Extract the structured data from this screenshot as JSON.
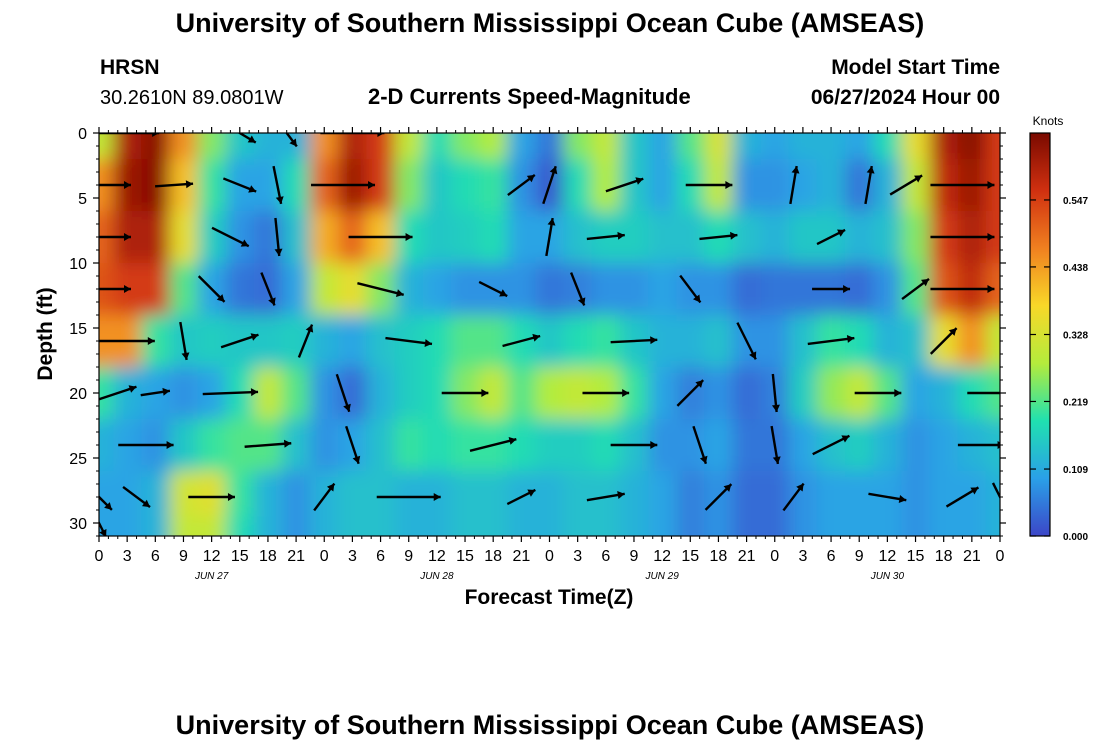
{
  "page": {
    "title": "University of Southern Mississippi Ocean Cube (AMSEAS)",
    "footer_title": "University of Southern Mississippi Ocean Cube (AMSEAS)",
    "station": "HRSN",
    "location": "30.2610N  89.0801W",
    "chart_heading": "2-D Currents Speed-Magnitude",
    "model_start_label": "Model Start Time",
    "model_start_value": "06/27/2024 Hour 00"
  },
  "chart_data": {
    "type": "heatmap",
    "title": "2-D Currents Speed-Magnitude",
    "xlabel": "Forecast Time(Z)",
    "ylabel": "Depth (ft)",
    "ylim": [
      31,
      0
    ],
    "xlim_hours": [
      0,
      96
    ],
    "x_tick_labels": [
      "0",
      "3",
      "6",
      "9",
      "12",
      "15",
      "18",
      "21",
      "0",
      "3",
      "6",
      "9",
      "12",
      "15",
      "18",
      "21",
      "0",
      "3",
      "6",
      "9",
      "12",
      "15",
      "18",
      "21",
      "0",
      "3",
      "6",
      "9",
      "12",
      "15",
      "18",
      "21",
      "0"
    ],
    "date_labels": [
      {
        "label": "JUN 27",
        "hour": 12
      },
      {
        "label": "JUN 28",
        "hour": 36
      },
      {
        "label": "JUN 29",
        "hour": 60
      },
      {
        "label": "JUN 30",
        "hour": 84
      }
    ],
    "y_ticks": [
      0,
      5,
      10,
      15,
      20,
      25,
      30
    ],
    "colorbar": {
      "unit": "Knots",
      "range": [
        0,
        0.656
      ],
      "tick_values": [
        0.0,
        0.109,
        0.219,
        0.328,
        0.438,
        0.547
      ],
      "tick_labels": [
        "0.000",
        "0.109",
        "0.219",
        "0.328",
        "0.438",
        "0.547"
      ],
      "colors": [
        "#3c46c8",
        "#2aa0e8",
        "#20e0b0",
        "#b4ec3c",
        "#f8d828",
        "#f08020",
        "#d03010",
        "#7a0a00"
      ]
    },
    "arrow_depths": [
      0,
      4,
      8,
      12,
      16,
      20,
      24,
      28,
      30
    ],
    "speed_grid": {
      "depths": [
        0,
        4,
        8,
        12,
        16,
        20,
        24,
        28,
        31
      ],
      "hours": [
        0,
        3,
        6,
        9,
        12,
        15,
        18,
        21,
        24,
        27,
        30,
        33,
        36,
        39,
        42,
        45,
        48,
        51,
        54,
        57,
        60,
        63,
        66,
        69,
        72,
        75,
        78,
        81,
        84,
        87,
        90,
        93,
        96
      ],
      "values": [
        [
          0.3,
          0.6,
          0.64,
          0.45,
          0.25,
          0.15,
          0.12,
          0.12,
          0.45,
          0.6,
          0.55,
          0.3,
          0.18,
          0.25,
          0.28,
          0.1,
          0.05,
          0.25,
          0.3,
          0.15,
          0.1,
          0.22,
          0.33,
          0.12,
          0.1,
          0.12,
          0.12,
          0.1,
          0.18,
          0.35,
          0.6,
          0.64,
          0.55
        ],
        [
          0.45,
          0.62,
          0.64,
          0.4,
          0.2,
          0.1,
          0.1,
          0.18,
          0.5,
          0.62,
          0.55,
          0.25,
          0.15,
          0.18,
          0.2,
          0.08,
          0.02,
          0.18,
          0.28,
          0.15,
          0.1,
          0.18,
          0.3,
          0.08,
          0.08,
          0.1,
          0.12,
          0.05,
          0.12,
          0.3,
          0.58,
          0.62,
          0.55
        ],
        [
          0.5,
          0.6,
          0.6,
          0.35,
          0.16,
          0.08,
          0.05,
          0.14,
          0.42,
          0.5,
          0.4,
          0.18,
          0.15,
          0.16,
          0.18,
          0.1,
          0.1,
          0.14,
          0.16,
          0.16,
          0.14,
          0.14,
          0.18,
          0.14,
          0.12,
          0.15,
          0.15,
          0.12,
          0.14,
          0.25,
          0.55,
          0.6,
          0.55
        ],
        [
          0.52,
          0.55,
          0.55,
          0.22,
          0.1,
          0.05,
          0.04,
          0.1,
          0.3,
          0.35,
          0.25,
          0.12,
          0.1,
          0.08,
          0.08,
          0.08,
          0.05,
          0.06,
          0.08,
          0.08,
          0.1,
          0.08,
          0.08,
          0.04,
          0.05,
          0.05,
          0.05,
          0.04,
          0.08,
          0.22,
          0.52,
          0.58,
          0.5
        ],
        [
          0.45,
          0.45,
          0.2,
          0.15,
          0.16,
          0.15,
          0.15,
          0.16,
          0.12,
          0.1,
          0.14,
          0.16,
          0.18,
          0.22,
          0.22,
          0.18,
          0.15,
          0.18,
          0.2,
          0.15,
          0.12,
          0.12,
          0.14,
          0.08,
          0.08,
          0.14,
          0.2,
          0.18,
          0.12,
          0.14,
          0.35,
          0.45,
          0.3
        ],
        [
          0.2,
          0.12,
          0.1,
          0.08,
          0.1,
          0.18,
          0.3,
          0.22,
          0.08,
          0.04,
          0.12,
          0.16,
          0.18,
          0.25,
          0.3,
          0.22,
          0.28,
          0.3,
          0.28,
          0.2,
          0.1,
          0.06,
          0.08,
          0.04,
          0.06,
          0.16,
          0.26,
          0.3,
          0.22,
          0.1,
          0.12,
          0.18,
          0.22
        ],
        [
          0.12,
          0.1,
          0.08,
          0.15,
          0.2,
          0.22,
          0.22,
          0.14,
          0.08,
          0.1,
          0.14,
          0.2,
          0.18,
          0.2,
          0.2,
          0.18,
          0.16,
          0.16,
          0.18,
          0.14,
          0.08,
          0.08,
          0.1,
          0.05,
          0.05,
          0.1,
          0.14,
          0.16,
          0.12,
          0.08,
          0.1,
          0.12,
          0.14
        ],
        [
          0.1,
          0.1,
          0.12,
          0.32,
          0.34,
          0.2,
          0.12,
          0.08,
          0.12,
          0.14,
          0.14,
          0.12,
          0.12,
          0.14,
          0.14,
          0.12,
          0.12,
          0.14,
          0.14,
          0.12,
          0.1,
          0.06,
          0.08,
          0.04,
          0.04,
          0.08,
          0.1,
          0.1,
          0.1,
          0.08,
          0.1,
          0.1,
          0.12
        ],
        [
          0.1,
          0.1,
          0.12,
          0.3,
          0.3,
          0.18,
          0.12,
          0.08,
          0.12,
          0.14,
          0.14,
          0.12,
          0.12,
          0.14,
          0.14,
          0.12,
          0.12,
          0.14,
          0.14,
          0.12,
          0.1,
          0.06,
          0.08,
          0.04,
          0.04,
          0.08,
          0.1,
          0.1,
          0.1,
          0.08,
          0.1,
          0.1,
          0.12
        ]
      ]
    },
    "current_vectors": [
      {
        "hour": 3,
        "depth": 0,
        "u": 0.6,
        "v": 0.0
      },
      {
        "hour": 15,
        "depth": 0,
        "u": 0.25,
        "v": -0.15
      },
      {
        "hour": 20,
        "depth": 0,
        "u": 0.15,
        "v": -0.2
      },
      {
        "hour": 27,
        "depth": 0,
        "u": 0.6,
        "v": 0.0
      },
      {
        "hour": 0,
        "depth": 4,
        "u": 0.6,
        "v": 0.0
      },
      {
        "hour": 8,
        "depth": 4,
        "u": 0.3,
        "v": 0.02
      },
      {
        "hour": 15,
        "depth": 4,
        "u": 0.25,
        "v": -0.1
      },
      {
        "hour": 19,
        "depth": 4,
        "u": 0.06,
        "v": -0.3
      },
      {
        "hour": 26,
        "depth": 4,
        "u": 0.6,
        "v": 0.0
      },
      {
        "hour": 45,
        "depth": 4,
        "u": 0.2,
        "v": 0.15
      },
      {
        "hour": 48,
        "depth": 4,
        "u": 0.1,
        "v": 0.3
      },
      {
        "hour": 56,
        "depth": 4,
        "u": 0.3,
        "v": 0.1
      },
      {
        "hour": 65,
        "depth": 4,
        "u": 0.4,
        "v": 0.0
      },
      {
        "hour": 74,
        "depth": 4,
        "u": 0.05,
        "v": 0.3
      },
      {
        "hour": 82,
        "depth": 4,
        "u": 0.05,
        "v": 0.3
      },
      {
        "hour": 86,
        "depth": 4,
        "u": 0.25,
        "v": 0.15
      },
      {
        "hour": 92,
        "depth": 4,
        "u": 0.6,
        "v": 0.0
      },
      {
        "hour": 0,
        "depth": 8,
        "u": 0.6,
        "v": 0.0
      },
      {
        "hour": 14,
        "depth": 8,
        "u": 0.3,
        "v": -0.15
      },
      {
        "hour": 19,
        "depth": 8,
        "u": 0.03,
        "v": -0.3
      },
      {
        "hour": 30,
        "depth": 8,
        "u": 0.6,
        "v": 0.0
      },
      {
        "hour": 48,
        "depth": 8,
        "u": 0.05,
        "v": 0.3
      },
      {
        "hour": 54,
        "depth": 8,
        "u": 0.3,
        "v": 0.03
      },
      {
        "hour": 66,
        "depth": 8,
        "u": 0.3,
        "v": 0.03
      },
      {
        "hour": 78,
        "depth": 8,
        "u": 0.2,
        "v": 0.1
      },
      {
        "hour": 92,
        "depth": 8,
        "u": 0.6,
        "v": 0.0
      },
      {
        "hour": 0,
        "depth": 12,
        "u": 0.6,
        "v": 0.0
      },
      {
        "hour": 12,
        "depth": 12,
        "u": 0.2,
        "v": -0.2
      },
      {
        "hour": 18,
        "depth": 12,
        "u": 0.1,
        "v": -0.25
      },
      {
        "hour": 30,
        "depth": 12,
        "u": 0.4,
        "v": -0.1
      },
      {
        "hour": 42,
        "depth": 12,
        "u": 0.2,
        "v": -0.1
      },
      {
        "hour": 51,
        "depth": 12,
        "u": 0.1,
        "v": -0.25
      },
      {
        "hour": 63,
        "depth": 12,
        "u": 0.15,
        "v": -0.2
      },
      {
        "hour": 78,
        "depth": 12,
        "u": 0.3,
        "v": 0.0
      },
      {
        "hour": 87,
        "depth": 12,
        "u": 0.2,
        "v": 0.15
      },
      {
        "hour": 92,
        "depth": 12,
        "u": 0.6,
        "v": 0.0
      },
      {
        "hour": 3,
        "depth": 16,
        "u": 0.5,
        "v": 0.0
      },
      {
        "hour": 9,
        "depth": 16,
        "u": 0.05,
        "v": -0.3
      },
      {
        "hour": 15,
        "depth": 16,
        "u": 0.3,
        "v": 0.1
      },
      {
        "hour": 22,
        "depth": 16,
        "u": 0.1,
        "v": 0.25
      },
      {
        "hour": 33,
        "depth": 16,
        "u": 0.4,
        "v": -0.05
      },
      {
        "hour": 45,
        "depth": 16,
        "u": 0.3,
        "v": 0.08
      },
      {
        "hour": 57,
        "depth": 16,
        "u": 0.4,
        "v": 0.02
      },
      {
        "hour": 69,
        "depth": 16,
        "u": 0.15,
        "v": -0.3
      },
      {
        "hour": 78,
        "depth": 16,
        "u": 0.4,
        "v": 0.05
      },
      {
        "hour": 90,
        "depth": 16,
        "u": 0.2,
        "v": 0.2
      },
      {
        "hour": 2,
        "depth": 20,
        "u": 0.3,
        "v": 0.1
      },
      {
        "hour": 6,
        "depth": 20,
        "u": 0.2,
        "v": 0.03
      },
      {
        "hour": 14,
        "depth": 20,
        "u": 0.5,
        "v": 0.02
      },
      {
        "hour": 26,
        "depth": 20,
        "u": 0.1,
        "v": -0.3
      },
      {
        "hour": 39,
        "depth": 20,
        "u": 0.4,
        "v": 0.0
      },
      {
        "hour": 54,
        "depth": 20,
        "u": 0.4,
        "v": 0.0
      },
      {
        "hour": 63,
        "depth": 20,
        "u": 0.2,
        "v": 0.2
      },
      {
        "hour": 72,
        "depth": 20,
        "u": 0.03,
        "v": -0.3
      },
      {
        "hour": 83,
        "depth": 20,
        "u": 0.4,
        "v": 0.0
      },
      {
        "hour": 95,
        "depth": 20,
        "u": 0.4,
        "v": 0.0
      },
      {
        "hour": 5,
        "depth": 24,
        "u": 0.5,
        "v": 0.0
      },
      {
        "hour": 18,
        "depth": 24,
        "u": 0.4,
        "v": 0.03
      },
      {
        "hour": 27,
        "depth": 24,
        "u": 0.1,
        "v": -0.3
      },
      {
        "hour": 42,
        "depth": 24,
        "u": 0.4,
        "v": 0.1
      },
      {
        "hour": 57,
        "depth": 24,
        "u": 0.4,
        "v": 0.0
      },
      {
        "hour": 64,
        "depth": 24,
        "u": 0.1,
        "v": -0.3
      },
      {
        "hour": 72,
        "depth": 24,
        "u": 0.05,
        "v": -0.3
      },
      {
        "hour": 78,
        "depth": 24,
        "u": 0.3,
        "v": 0.15
      },
      {
        "hour": 94,
        "depth": 24,
        "u": 0.4,
        "v": 0.0
      },
      {
        "hour": 0,
        "depth": 28,
        "u": 0.2,
        "v": -0.2
      },
      {
        "hour": 4,
        "depth": 28,
        "u": 0.2,
        "v": -0.15
      },
      {
        "hour": 12,
        "depth": 28,
        "u": 0.4,
        "v": 0.0
      },
      {
        "hour": 24,
        "depth": 28,
        "u": 0.15,
        "v": 0.2
      },
      {
        "hour": 33,
        "depth": 28,
        "u": 0.6,
        "v": 0.0
      },
      {
        "hour": 45,
        "depth": 28,
        "u": 0.2,
        "v": 0.1
      },
      {
        "hour": 54,
        "depth": 28,
        "u": 0.3,
        "v": 0.05
      },
      {
        "hour": 66,
        "depth": 28,
        "u": 0.2,
        "v": 0.2
      },
      {
        "hour": 74,
        "depth": 28,
        "u": 0.15,
        "v": 0.2
      },
      {
        "hour": 84,
        "depth": 28,
        "u": 0.3,
        "v": -0.05
      },
      {
        "hour": 92,
        "depth": 28,
        "u": 0.25,
        "v": 0.15
      },
      {
        "hour": 96,
        "depth": 28,
        "u": 0.1,
        "v": -0.2
      },
      {
        "hour": 0,
        "depth": 30,
        "u": 0.1,
        "v": -0.2
      }
    ]
  }
}
